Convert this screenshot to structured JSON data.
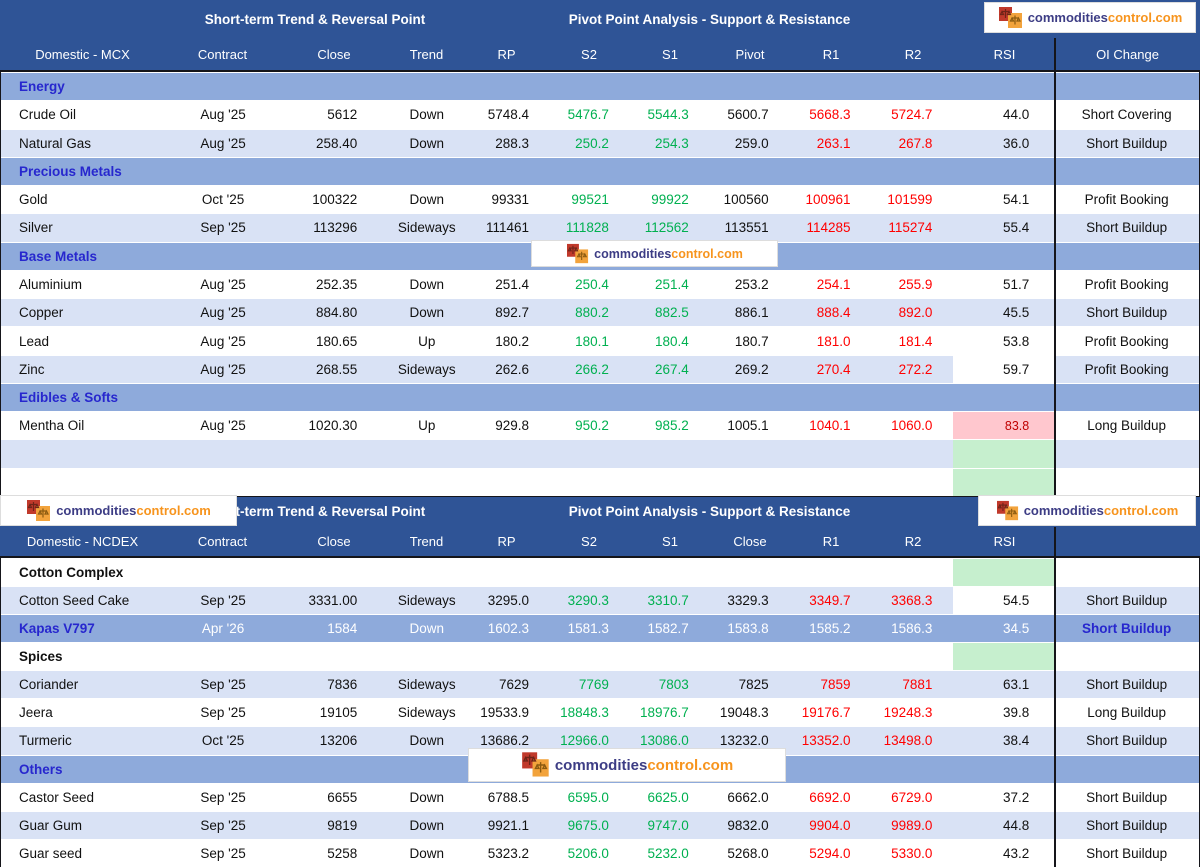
{
  "logo": {
    "part1": "commodities",
    "part2": "control.com"
  },
  "colors": {
    "header_blue": "#2F5496",
    "section_band_blue": "#8EAADB",
    "row_stripe_blue": "#D9E2F5",
    "support_green": "#00B050",
    "resistance_red": "#FF0000",
    "rsi_alert_bg": "#FFC7CE",
    "rsi_alert_text": "#C00000",
    "rsi_empty_bg": "#C6EFCE",
    "section_label_blue": "#2727CE"
  },
  "tables": [
    {
      "id": "mcx",
      "group_left": "Short-term Trend & Reversal Point",
      "group_right": "Pivot Point Analysis - Support & Resistance",
      "headers": [
        "Domestic - MCX",
        "Contract",
        "Close",
        "Trend",
        "RP",
        "S2",
        "S1",
        "Pivot",
        "R1",
        "R2",
        "RSI",
        "OI Change"
      ],
      "rows": [
        {
          "type": "section",
          "variant": "band",
          "label": "Energy"
        },
        {
          "type": "data",
          "shade": "white",
          "name": "Crude Oil",
          "contract": "Aug '25",
          "close": "5612",
          "trend": "Down",
          "rp": "5748.4",
          "s2": "5476.7",
          "s1": "5544.3",
          "pivot": "5600.7",
          "r1": "5668.3",
          "r2": "5724.7",
          "rsi": "44.0",
          "oi": "Short Covering"
        },
        {
          "type": "data",
          "shade": "blue",
          "name": "Natural Gas",
          "contract": "Aug '25",
          "close": "258.40",
          "trend": "Down",
          "rp": "288.3",
          "s2": "250.2",
          "s1": "254.3",
          "pivot": "259.0",
          "r1": "263.1",
          "r2": "267.8",
          "rsi": "36.0",
          "oi": "Short Buildup"
        },
        {
          "type": "section",
          "variant": "band",
          "label": "Precious Metals"
        },
        {
          "type": "data",
          "shade": "white",
          "name": "Gold",
          "contract": "Oct '25",
          "close": "100322",
          "trend": "Down",
          "rp": "99331",
          "s2": "99521",
          "s1": "99922",
          "pivot": "100560",
          "r1": "100961",
          "r2": "101599",
          "rsi": "54.1",
          "oi": "Profit Booking"
        },
        {
          "type": "data",
          "shade": "blue",
          "name": "Silver",
          "contract": "Sep '25",
          "close": "113296",
          "trend": "Sideways",
          "rp": "111461",
          "s2": "111828",
          "s1": "112562",
          "pivot": "113551",
          "r1": "114285",
          "r2": "115274",
          "rsi": "55.4",
          "oi": "Short Buildup"
        },
        {
          "type": "section",
          "variant": "band",
          "label": "Base Metals"
        },
        {
          "type": "data",
          "shade": "white",
          "name": "Aluminium",
          "contract": "Aug '25",
          "close": "252.35",
          "trend": "Down",
          "rp": "251.4",
          "s2": "250.4",
          "s1": "251.4",
          "pivot": "253.2",
          "r1": "254.1",
          "r2": "255.9",
          "rsi": "51.7",
          "oi": "Profit Booking"
        },
        {
          "type": "data",
          "shade": "blue",
          "name": "Copper",
          "contract": "Aug '25",
          "close": "884.80",
          "trend": "Down",
          "rp": "892.7",
          "s2": "880.2",
          "s1": "882.5",
          "pivot": "886.1",
          "r1": "888.4",
          "r2": "892.0",
          "rsi": "45.5",
          "oi": "Short Buildup"
        },
        {
          "type": "data",
          "shade": "white",
          "name": "Lead",
          "contract": "Aug '25",
          "close": "180.65",
          "trend": "Up",
          "rp": "180.2",
          "s2": "180.1",
          "s1": "180.4",
          "pivot": "180.7",
          "r1": "181.0",
          "r2": "181.4",
          "rsi": "53.8",
          "oi": "Profit Booking"
        },
        {
          "type": "data",
          "shade": "blue",
          "name": "Zinc",
          "contract": "Aug '25",
          "close": "268.55",
          "trend": "Sideways",
          "rp": "262.6",
          "s2": "266.2",
          "s1": "267.4",
          "pivot": "269.2",
          "r1": "270.4",
          "r2": "272.2",
          "rsi": "59.7",
          "rsi_bg": "white",
          "oi": "Profit Booking"
        },
        {
          "type": "section",
          "variant": "band",
          "label": "Edibles & Softs"
        },
        {
          "type": "data",
          "shade": "white",
          "name": "Mentha Oil",
          "contract": "Aug '25",
          "close": "1020.30",
          "trend": "Up",
          "rp": "929.8",
          "s2": "950.2",
          "s1": "985.2",
          "pivot": "1005.1",
          "r1": "1040.1",
          "r2": "1060.0",
          "rsi": "83.8",
          "rsi_bg": "pink",
          "oi": "Long Buildup"
        },
        {
          "type": "blank",
          "shade": "blue",
          "rsi_bg": "green"
        },
        {
          "type": "blank",
          "shade": "white",
          "rsi_bg": "green"
        }
      ]
    },
    {
      "id": "ncdex",
      "group_left": "Short-term Trend & Reversal Point",
      "group_right": "Pivot Point Analysis - Support & Resistance",
      "headers": [
        "Domestic - NCDEX",
        "Contract",
        "Close",
        "Trend",
        "RP",
        "S2",
        "S1",
        "Close",
        "R1",
        "R2",
        "RSI",
        ""
      ],
      "rows": [
        {
          "type": "section",
          "variant": "plain",
          "label": "Cotton Complex",
          "rsi_bg": "green"
        },
        {
          "type": "data",
          "shade": "blue",
          "name": "Cotton Seed Cake",
          "contract": "Sep '25",
          "close": "3331.00",
          "trend": "Sideways",
          "rp": "3295.0",
          "s2": "3290.3",
          "s1": "3310.7",
          "pivot": "3329.3",
          "r1": "3349.7",
          "r2": "3368.3",
          "rsi": "54.5",
          "rsi_bg": "white",
          "oi": "Short Buildup"
        },
        {
          "type": "data",
          "shade": "highlight",
          "name": "Kapas V797",
          "contract": "Apr '26",
          "close": "1584",
          "trend": "Down",
          "rp": "1602.3",
          "s2": "1581.3",
          "s1": "1582.7",
          "pivot": "1583.8",
          "r1": "1585.2",
          "r2": "1586.3",
          "rsi": "34.5",
          "oi": "Short Buildup"
        },
        {
          "type": "section",
          "variant": "plain",
          "label": "Spices",
          "rsi_bg": "green"
        },
        {
          "type": "data",
          "shade": "blue",
          "name": "Coriander",
          "contract": "Sep '25",
          "close": "7836",
          "trend": "Sideways",
          "rp": "7629",
          "s2": "7769",
          "s1": "7803",
          "pivot": "7825",
          "r1": "7859",
          "r2": "7881",
          "rsi": "63.1",
          "oi": "Short Buildup"
        },
        {
          "type": "data",
          "shade": "white",
          "name": "Jeera",
          "contract": "Sep '25",
          "close": "19105",
          "trend": "Sideways",
          "rp": "19533.9",
          "s2": "18848.3",
          "s1": "18976.7",
          "pivot": "19048.3",
          "r1": "19176.7",
          "r2": "19248.3",
          "rsi": "39.8",
          "oi": "Long Buildup"
        },
        {
          "type": "data",
          "shade": "blue",
          "name": "Turmeric",
          "contract": "Oct '25",
          "close": "13206",
          "trend": "Down",
          "rp": "13686.2",
          "s2": "12966.0",
          "s1": "13086.0",
          "pivot": "13232.0",
          "r1": "13352.0",
          "r2": "13498.0",
          "rsi": "38.4",
          "oi": "Short Buildup"
        },
        {
          "type": "section",
          "variant": "band",
          "label": "Others"
        },
        {
          "type": "data",
          "shade": "white",
          "name": "Castor Seed",
          "contract": "Sep '25",
          "close": "6655",
          "trend": "Down",
          "rp": "6788.5",
          "s2": "6595.0",
          "s1": "6625.0",
          "pivot": "6662.0",
          "r1": "6692.0",
          "r2": "6729.0",
          "rsi": "37.2",
          "oi": "Short Buildup"
        },
        {
          "type": "data",
          "shade": "blue",
          "name": "Guar Gum",
          "contract": "Sep '25",
          "close": "9819",
          "trend": "Down",
          "rp": "9921.1",
          "s2": "9675.0",
          "s1": "9747.0",
          "pivot": "9832.0",
          "r1": "9904.0",
          "r2": "9989.0",
          "rsi": "44.8",
          "oi": "Short Buildup"
        },
        {
          "type": "data",
          "shade": "white",
          "name": "Guar seed",
          "contract": "Sep '25",
          "close": "5258",
          "trend": "Down",
          "rp": "5323.2",
          "s2": "5206.0",
          "s1": "5232.0",
          "pivot": "5268.0",
          "r1": "5294.0",
          "r2": "5330.0",
          "rsi": "43.2",
          "oi": "Short Buildup"
        }
      ]
    }
  ]
}
